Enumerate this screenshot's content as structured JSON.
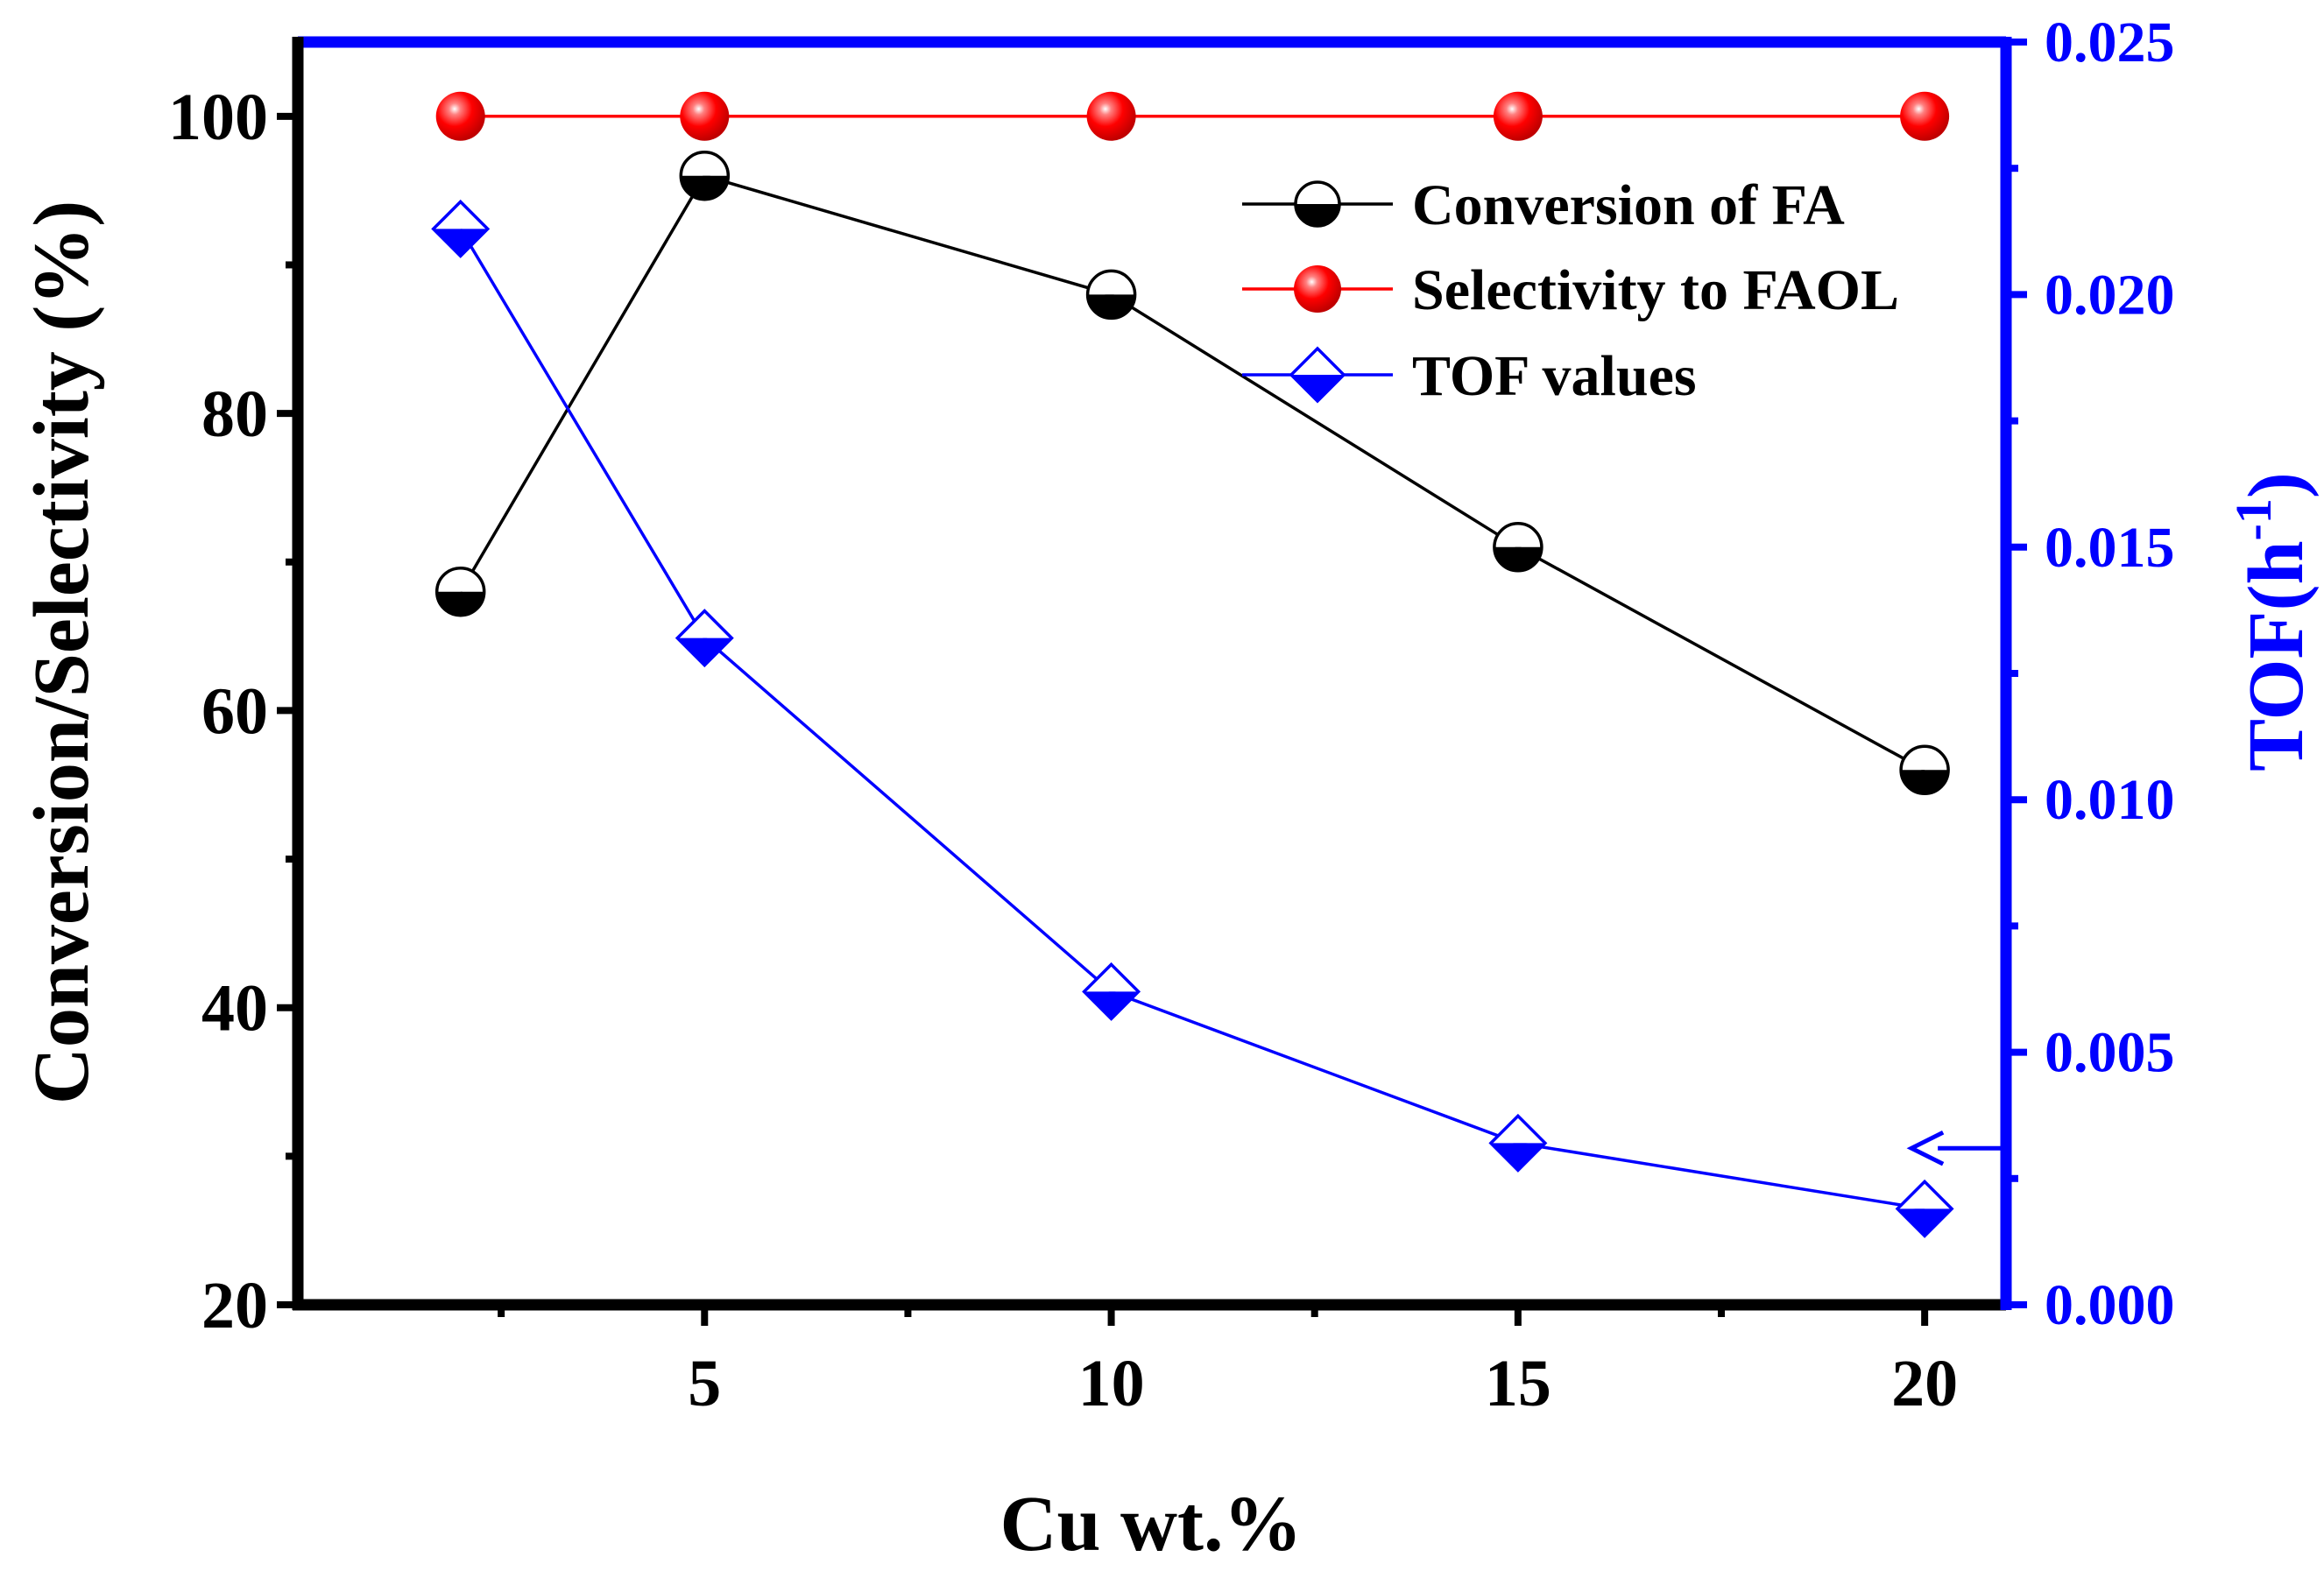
{
  "chart_data": {
    "type": "line",
    "x": [
      2,
      5,
      10,
      15,
      20
    ],
    "xlabel": "Cu wt.%",
    "ylabel": "Conversion/Selectivity (%)",
    "ylabel_right": "TOF(h",
    "ylabel_right_sup": "-1",
    "ylabel_right_close": ")",
    "xlim": [
      0,
      21
    ],
    "ylim": [
      20,
      105
    ],
    "ylim_right": [
      0,
      0.025
    ],
    "xticks": [
      5,
      10,
      15,
      20
    ],
    "xtick_labels": [
      "5",
      "10",
      "15",
      "20"
    ],
    "yticks": [
      20,
      40,
      60,
      80,
      100
    ],
    "ytick_labels": [
      "20",
      "40",
      "60",
      "80",
      "100"
    ],
    "yticks_right": [
      0,
      0.005,
      0.01,
      0.015,
      0.02,
      0.025
    ],
    "ytick_labels_right": [
      "0.000",
      "0.005",
      "0.010",
      "0.015",
      "0.020",
      "0.025"
    ],
    "grid": false,
    "legend_position": "top-right",
    "series": [
      {
        "name": "Conversion of FA",
        "axis": "left",
        "color": "#000000",
        "marker": "half-filled-circle",
        "values": [
          68,
          96,
          88,
          71,
          56
        ]
      },
      {
        "name": "Selectivity to FAOL",
        "axis": "left",
        "color": "#ff0000",
        "marker": "red-sphere",
        "values": [
          100,
          100,
          100,
          100,
          100
        ]
      },
      {
        "name": "TOF values",
        "axis": "right",
        "color": "#0000ff",
        "marker": "half-filled-diamond",
        "values": [
          0.0213,
          0.0132,
          0.0062,
          0.0032,
          0.0019
        ]
      }
    ],
    "annotations": [
      {
        "type": "arrow",
        "direction": "left",
        "axis": "right",
        "x": 20,
        "y": 0.0031,
        "color": "#0000ff",
        "meaning": "TOF series uses right axis"
      }
    ]
  },
  "colors": {
    "left_axis": "#000000",
    "right_axis": "#0000ff",
    "top_axis": "#0000ff"
  }
}
